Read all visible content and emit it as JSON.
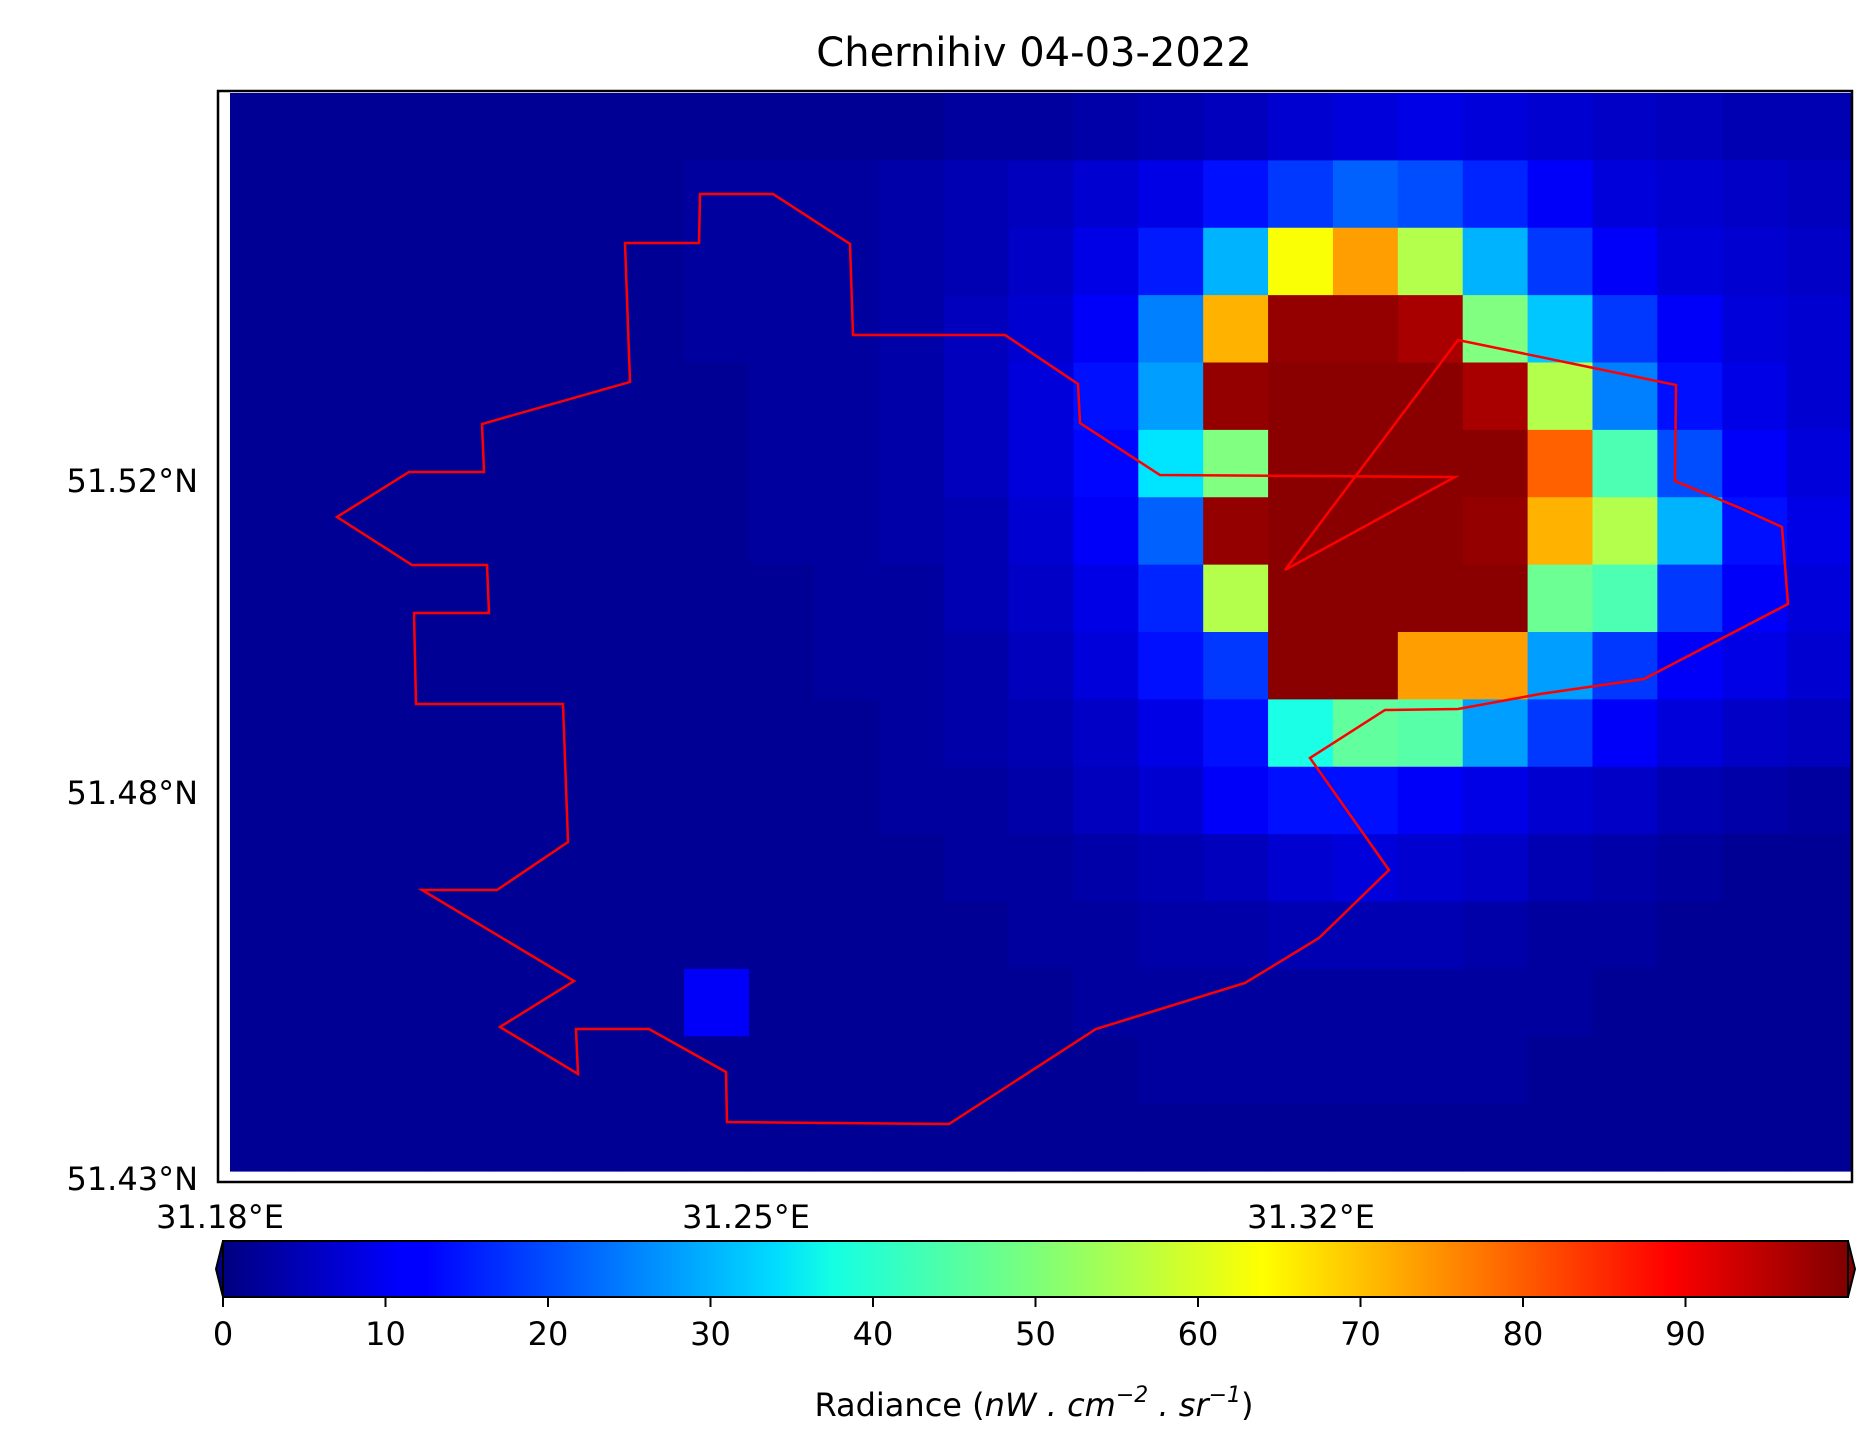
{
  "chart_data": {
    "type": "heatmap",
    "title": "Chernihiv 04-03-2022",
    "x_ticks": [
      "31.18°E",
      "31.25°E",
      "31.32°E"
    ],
    "y_ticks": [
      "51.52°N",
      "51.48°N",
      "51.43°N"
    ],
    "colorbar": {
      "label_prefix": "Radiance (",
      "label_math": "nW . cm",
      "label_exp1": "−2",
      "label_mid": " . sr",
      "label_exp2": "−1",
      "label_suffix": ")",
      "colormap": "jet",
      "vmin": 0,
      "vmax": 100,
      "extend": "both",
      "ticks": [
        "0",
        "10",
        "20",
        "30",
        "40",
        "50",
        "60",
        "70",
        "80",
        "90"
      ]
    },
    "grid": false,
    "overlay": {
      "type": "city boundary outline",
      "color": "#ff0000"
    },
    "radiance_grid": {
      "rows": 16,
      "cols": 25,
      "values": [
        [
          2,
          2,
          2,
          2,
          2,
          2,
          2,
          2,
          2,
          2,
          2,
          3,
          3,
          4,
          5,
          6,
          8,
          9,
          10,
          9,
          8,
          7,
          6,
          5,
          5
        ],
        [
          2,
          2,
          2,
          2,
          2,
          2,
          2,
          3,
          3,
          3,
          4,
          5,
          6,
          8,
          10,
          14,
          18,
          22,
          20,
          16,
          12,
          9,
          8,
          7,
          6
        ],
        [
          2,
          2,
          2,
          2,
          2,
          2,
          2,
          3,
          3,
          3,
          4,
          5,
          7,
          10,
          15,
          30,
          62,
          72,
          55,
          30,
          18,
          12,
          9,
          8,
          7
        ],
        [
          2,
          2,
          2,
          2,
          2,
          2,
          2,
          3,
          3,
          3,
          4,
          6,
          8,
          12,
          25,
          70,
          98,
          98,
          96,
          50,
          32,
          18,
          12,
          9,
          8
        ],
        [
          2,
          2,
          2,
          2,
          2,
          2,
          2,
          2,
          3,
          3,
          4,
          6,
          9,
          14,
          28,
          98,
          99,
          99,
          99,
          96,
          55,
          25,
          14,
          10,
          8
        ],
        [
          2,
          2,
          2,
          2,
          2,
          2,
          2,
          2,
          3,
          3,
          4,
          6,
          9,
          13,
          35,
          50,
          99,
          99,
          99,
          99,
          78,
          45,
          20,
          12,
          9
        ],
        [
          2,
          2,
          2,
          2,
          2,
          2,
          2,
          2,
          3,
          3,
          4,
          5,
          8,
          12,
          22,
          98,
          99,
          99,
          99,
          98,
          70,
          55,
          30,
          14,
          10
        ],
        [
          2,
          2,
          2,
          2,
          2,
          2,
          2,
          2,
          2,
          3,
          3,
          5,
          7,
          10,
          16,
          55,
          99,
          99,
          99,
          99,
          48,
          45,
          18,
          12,
          9
        ],
        [
          2,
          2,
          2,
          2,
          2,
          2,
          2,
          2,
          2,
          3,
          3,
          4,
          6,
          9,
          14,
          18,
          99,
          99,
          72,
          72,
          28,
          18,
          12,
          10,
          8
        ],
        [
          2,
          2,
          2,
          2,
          2,
          2,
          2,
          2,
          2,
          2,
          3,
          4,
          5,
          7,
          10,
          14,
          40,
          47,
          46,
          28,
          18,
          12,
          9,
          7,
          6
        ],
        [
          2,
          2,
          2,
          2,
          2,
          2,
          2,
          2,
          2,
          2,
          3,
          3,
          4,
          6,
          8,
          12,
          14,
          14,
          12,
          10,
          8,
          7,
          5,
          4,
          3
        ],
        [
          2,
          2,
          2,
          2,
          2,
          2,
          2,
          2,
          2,
          2,
          2,
          3,
          3,
          4,
          5,
          6,
          8,
          9,
          8,
          7,
          5,
          4,
          3,
          2,
          2
        ],
        [
          2,
          2,
          2,
          2,
          2,
          2,
          2,
          2,
          2,
          2,
          2,
          2,
          3,
          3,
          4,
          4,
          5,
          5,
          5,
          4,
          3,
          3,
          2,
          2,
          2
        ],
        [
          2,
          2,
          2,
          2,
          2,
          2,
          2,
          12,
          2,
          2,
          2,
          2,
          2,
          3,
          3,
          3,
          3,
          3,
          3,
          3,
          3,
          2,
          2,
          2,
          2
        ],
        [
          2,
          2,
          2,
          2,
          2,
          2,
          2,
          2,
          2,
          2,
          2,
          2,
          2,
          2,
          3,
          3,
          3,
          3,
          3,
          3,
          2,
          2,
          2,
          2,
          2
        ],
        [
          2,
          2,
          2,
          2,
          2,
          2,
          2,
          2,
          2,
          2,
          2,
          2,
          2,
          2,
          2,
          2,
          2,
          2,
          2,
          2,
          2,
          2,
          2,
          2,
          2
        ]
      ]
    }
  }
}
